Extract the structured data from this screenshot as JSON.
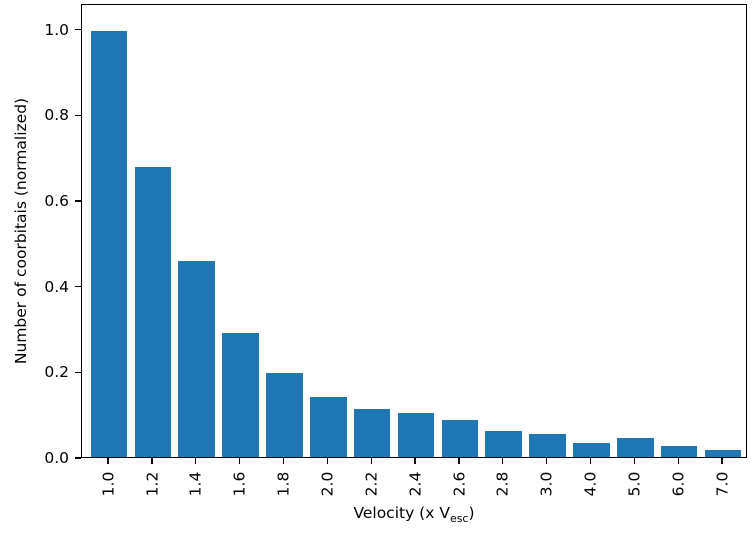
{
  "chart_data": {
    "type": "bar",
    "title": "",
    "categories": [
      "1.0",
      "1.2",
      "1.4",
      "1.6",
      "1.8",
      "2.0",
      "2.2",
      "2.4",
      "2.6",
      "2.8",
      "3.0",
      "4.0",
      "5.0",
      "6.0",
      "7.0"
    ],
    "values": [
      1.0,
      0.68,
      0.46,
      0.29,
      0.197,
      0.141,
      0.112,
      0.103,
      0.088,
      0.062,
      0.054,
      0.034,
      0.045,
      0.025,
      0.017
    ],
    "xlabel": "Velocity (x V_esc)",
    "xlabel_parts": {
      "main": "Velocity (x V",
      "sub": "esc",
      "end": ")"
    },
    "ylabel": "Number of coorbitais (normalized)",
    "ytick_labels": [
      "0.0",
      "0.2",
      "0.4",
      "0.6",
      "0.8",
      "1.0"
    ],
    "yticks": [
      0.0,
      0.2,
      0.4,
      0.6,
      0.8,
      1.0
    ],
    "ylim": [
      0,
      1.06
    ],
    "xtick_rotation_deg": 90,
    "bar_color": "#1f77b4",
    "text_color": "#000000",
    "background_color": "#ffffff",
    "grid": false,
    "legend": null
  }
}
